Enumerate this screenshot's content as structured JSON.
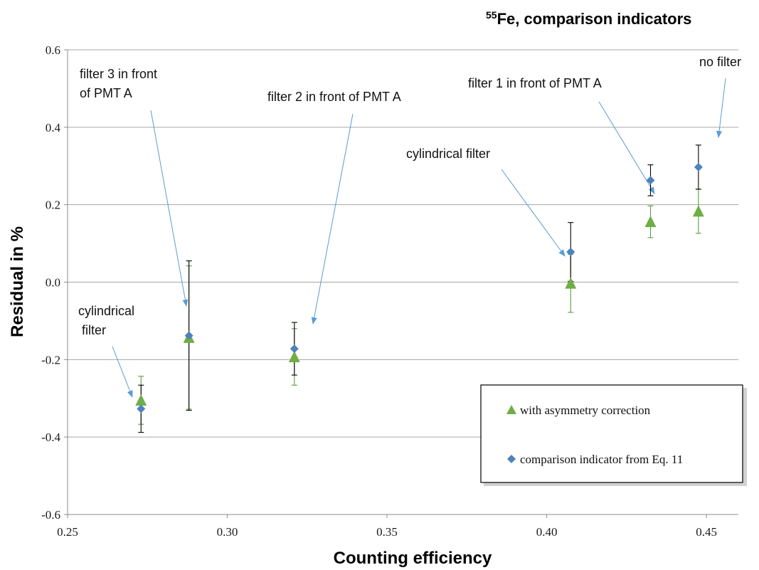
{
  "chart_data": {
    "type": "scatter",
    "title_sup": "55",
    "title": "Fe, comparison indicators",
    "xlabel": "Counting efficiency",
    "ylabel": "Residual in %",
    "xlim": [
      0.25,
      0.46
    ],
    "ylim": [
      -0.6,
      0.6
    ],
    "x_ticks": [
      0.25,
      0.3,
      0.35,
      0.4,
      0.45
    ],
    "x_tick_labels": [
      "0.25",
      "0.30",
      "0.35",
      "0.40",
      "0.45"
    ],
    "y_ticks": [
      -0.6,
      -0.4,
      -0.2,
      0.0,
      0.2,
      0.4,
      0.6
    ],
    "y_tick_labels": [
      "-0.6",
      "-0.4",
      "-0.2",
      "0.0",
      "0.2",
      "0.4",
      "0.6"
    ],
    "grid": "horizontal",
    "legend_position": "bottom-right",
    "series": [
      {
        "name": "with asymmetry correction",
        "marker": "triangle",
        "color": "#70ad47",
        "points": [
          {
            "x": 0.273,
            "y": -0.305,
            "err": 0.062
          },
          {
            "x": 0.288,
            "y": -0.143,
            "err": 0.185
          },
          {
            "x": 0.321,
            "y": -0.193,
            "err": 0.073
          },
          {
            "x": 0.4075,
            "y": -0.003,
            "err": 0.075
          },
          {
            "x": 0.4325,
            "y": 0.156,
            "err": 0.041
          },
          {
            "x": 0.4475,
            "y": 0.183,
            "err": 0.057
          }
        ]
      },
      {
        "name": "comparison indicator from Eq. 11",
        "marker": "diamond",
        "color": "#4f81bd",
        "points": [
          {
            "x": 0.273,
            "y": -0.327,
            "err": 0.061
          },
          {
            "x": 0.288,
            "y": -0.138,
            "err": 0.193
          },
          {
            "x": 0.321,
            "y": -0.172,
            "err": 0.068
          },
          {
            "x": 0.4075,
            "y": 0.078,
            "err": 0.076
          },
          {
            "x": 0.4325,
            "y": 0.263,
            "err": 0.04
          },
          {
            "x": 0.4475,
            "y": 0.297,
            "err": 0.057
          }
        ]
      }
    ],
    "annotations": [
      {
        "lines": [
          "cylindrical",
          " filter"
        ]
      },
      {
        "lines": [
          "filter 3 in front",
          "of PMT A"
        ]
      },
      {
        "lines": [
          "filter 2 in front of PMT A"
        ]
      },
      {
        "lines": [
          "cylindrical filter"
        ]
      },
      {
        "lines": [
          "filter 1 in front of PMT A"
        ]
      },
      {
        "lines": [
          "no filter"
        ]
      }
    ]
  }
}
